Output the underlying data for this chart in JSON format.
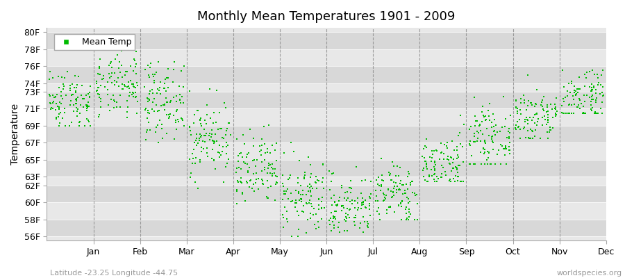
{
  "title": "Monthly Mean Temperatures 1901 - 2009",
  "ylabel": "Temperature",
  "xlabel_labels": [
    "Jan",
    "Feb",
    "Mar",
    "Apr",
    "May",
    "Jun",
    "Jul",
    "Aug",
    "Sep",
    "Oct",
    "Nov",
    "Dec"
  ],
  "ytick_labels": [
    "56F",
    "58F",
    "60F",
    "62F",
    "63F",
    "65F",
    "67F",
    "69F",
    "71F",
    "73F",
    "74F",
    "76F",
    "78F",
    "80F"
  ],
  "ytick_values": [
    56,
    58,
    60,
    62,
    63,
    65,
    67,
    69,
    71,
    73,
    74,
    76,
    78,
    80
  ],
  "ylim": [
    55.5,
    80.5
  ],
  "legend_label": "Mean Temp",
  "dot_color": "#00bb00",
  "background_color": "#f0f0f0",
  "plot_bg_color": "#e8e8e8",
  "band_color_dark": "#d8d8d8",
  "band_color_light": "#e8e8e8",
  "watermark": "worldspecies.org",
  "subtitle": "Latitude -23.25 Longitude -44.75",
  "num_years": 109,
  "monthly_means": [
    72.0,
    73.5,
    72.0,
    67.5,
    63.5,
    60.5,
    59.5,
    61.0,
    64.5,
    67.5,
    70.0,
    72.5
  ],
  "monthly_stds": [
    1.8,
    1.8,
    2.2,
    2.2,
    2.2,
    2.2,
    1.8,
    1.8,
    1.8,
    1.8,
    1.8,
    1.8
  ],
  "monthly_mins": [
    69.0,
    70.0,
    67.0,
    61.5,
    57.5,
    56.0,
    56.5,
    58.0,
    62.5,
    64.5,
    67.5,
    70.5
  ],
  "monthly_maxs": [
    77.5,
    78.5,
    76.5,
    74.0,
    69.5,
    67.5,
    66.5,
    66.5,
    70.5,
    73.0,
    75.5,
    75.5
  ]
}
